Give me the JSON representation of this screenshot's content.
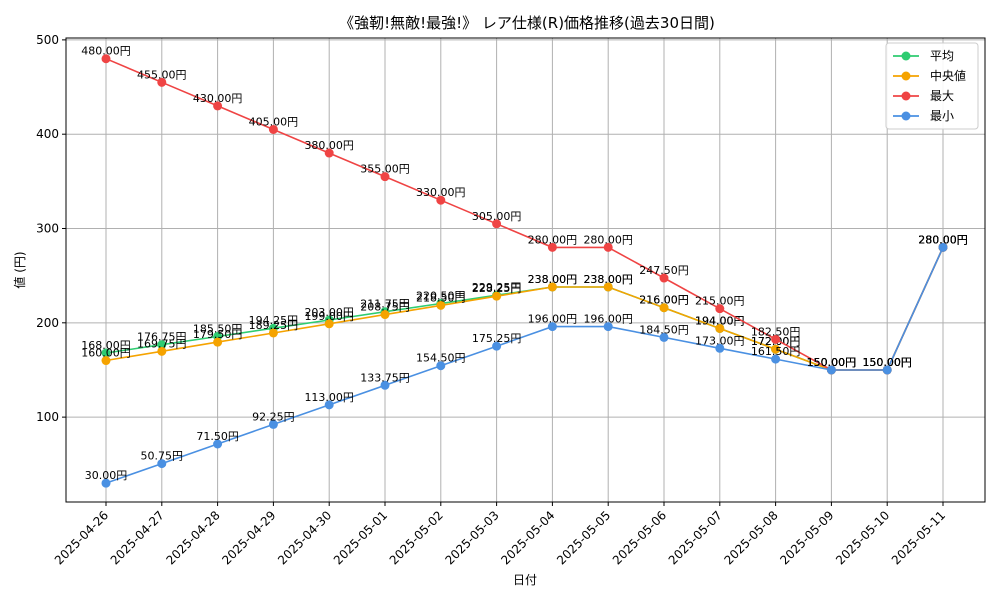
{
  "chart_data": {
    "type": "line",
    "title": "《強靭!無敵!最強!》 レア仕様(R)価格推移(過去30日間)",
    "xlabel": "日付",
    "ylabel": "値 (円)",
    "ylim": [
      10,
      502
    ],
    "yticks": [
      100,
      200,
      300,
      400,
      500
    ],
    "grid": true,
    "legend_position": "top-right",
    "value_suffix": "円",
    "categories": [
      "2025-04-26",
      "2025-04-27",
      "2025-04-28",
      "2025-04-29",
      "2025-04-30",
      "2025-05-01",
      "2025-05-02",
      "2025-05-03",
      "2025-05-04",
      "2025-05-05",
      "2025-05-06",
      "2025-05-07",
      "2025-05-08",
      "2025-05-09",
      "2025-05-10",
      "2025-05-11"
    ],
    "series": [
      {
        "name": "平均",
        "color": "#2ecc71",
        "values": [
          168.0,
          176.75,
          185.5,
          194.25,
          203.0,
          211.75,
          220.5,
          229.25,
          238.0,
          238.0,
          216.0,
          194.0,
          172.0,
          150.0,
          150.0,
          280.0
        ]
      },
      {
        "name": "中央値",
        "color": "#f5a300",
        "values": [
          160.0,
          169.75,
          179.5,
          189.25,
          199.0,
          208.75,
          218.5,
          228.25,
          238.0,
          238.0,
          216.0,
          194.0,
          172.0,
          150.0,
          150.0,
          280.0
        ]
      },
      {
        "name": "最大",
        "color": "#ef4444",
        "values": [
          480.0,
          455.0,
          430.0,
          405.0,
          380.0,
          355.0,
          330.0,
          305.0,
          280.0,
          280.0,
          247.5,
          215.0,
          182.5,
          150.0,
          150.0,
          280.0
        ]
      },
      {
        "name": "最小",
        "color": "#4a90e2",
        "values": [
          30.0,
          50.75,
          71.5,
          92.25,
          113.0,
          133.75,
          154.5,
          175.25,
          196.0,
          196.0,
          184.5,
          173.0,
          161.5,
          150.0,
          150.0,
          280.0
        ]
      }
    ]
  }
}
